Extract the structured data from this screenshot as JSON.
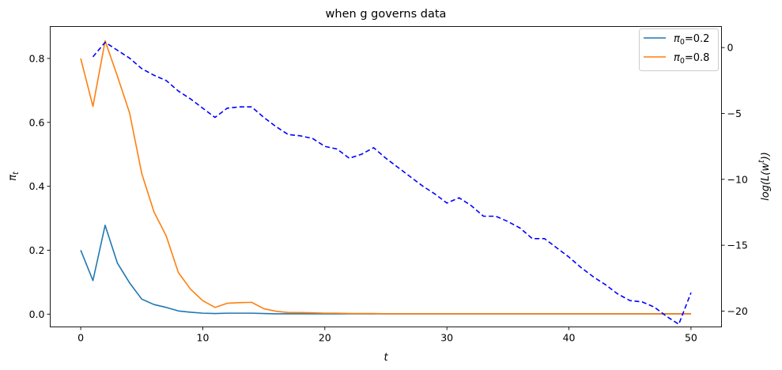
{
  "chart_data": {
    "type": "line",
    "title": "when g governs data",
    "xlabel": "t",
    "ylabel_left": "π_t",
    "ylabel_right": "log(L(w^t))",
    "xlim": [
      -2.5,
      52.5
    ],
    "ylim_left": [
      -0.04,
      0.9
    ],
    "ylim_right": [
      -21.2,
      1.6
    ],
    "x_ticks": [
      0,
      10,
      20,
      30,
      40,
      50
    ],
    "y_left_ticks": [
      0.0,
      0.2,
      0.4,
      0.6,
      0.8
    ],
    "y_right_ticks": [
      0,
      -5,
      -10,
      -15,
      -20
    ],
    "x_tick_labels": [
      "0",
      "10",
      "20",
      "30",
      "40",
      "50"
    ],
    "y_left_tick_labels": [
      "0.0",
      "0.2",
      "0.4",
      "0.6",
      "0.8"
    ],
    "y_right_tick_labels": [
      "0",
      "−5",
      "−10",
      "−15",
      "−20"
    ],
    "grid": false,
    "legend_position": "top-right",
    "series": [
      {
        "name": "π_0=0.2",
        "color": "#1f77b4",
        "axis": "left",
        "style": "solid",
        "x": [
          0,
          1,
          2,
          3,
          4,
          5,
          6,
          7,
          8,
          9,
          10,
          11,
          12,
          13,
          14,
          15,
          16,
          17,
          18,
          19,
          20,
          21,
          22,
          23,
          24,
          25,
          26,
          27,
          28,
          29,
          30,
          31,
          32,
          33,
          34,
          35,
          36,
          37,
          38,
          39,
          40,
          41,
          42,
          43,
          44,
          45,
          46,
          47,
          48,
          49,
          50
        ],
        "values": [
          0.2,
          0.105,
          0.278,
          0.16,
          0.098,
          0.047,
          0.03,
          0.021,
          0.01,
          0.006,
          0.003,
          0.002,
          0.003,
          0.003,
          0.003,
          0.002,
          0.001,
          0.001,
          0.001,
          0.001,
          0.001,
          0.001,
          0.001,
          0.001,
          0.001,
          0.001,
          0.001,
          0.001,
          0.001,
          0.001,
          0.001,
          0.001,
          0.001,
          0.001,
          0.001,
          0.001,
          0.001,
          0.001,
          0.001,
          0.001,
          0.001,
          0.001,
          0.001,
          0.001,
          0.001,
          0.001,
          0.001,
          0.001,
          0.001,
          0.001,
          0.001
        ]
      },
      {
        "name": "π_0=0.8",
        "color": "#ff7f0e",
        "axis": "left",
        "style": "solid",
        "x": [
          0,
          1,
          2,
          3,
          4,
          5,
          6,
          7,
          8,
          9,
          10,
          11,
          12,
          13,
          14,
          15,
          16,
          17,
          18,
          19,
          20,
          21,
          22,
          23,
          24,
          25,
          26,
          27,
          28,
          29,
          30,
          31,
          32,
          33,
          34,
          35,
          36,
          37,
          38,
          39,
          40,
          41,
          42,
          43,
          44,
          45,
          46,
          47,
          48,
          49,
          50
        ],
        "values": [
          0.8,
          0.65,
          0.855,
          0.745,
          0.63,
          0.44,
          0.32,
          0.245,
          0.13,
          0.078,
          0.042,
          0.021,
          0.034,
          0.036,
          0.037,
          0.017,
          0.009,
          0.005,
          0.005,
          0.004,
          0.003,
          0.003,
          0.002,
          0.002,
          0.002,
          0.001,
          0.001,
          0.001,
          0.001,
          0.001,
          0.001,
          0.001,
          0.001,
          0.001,
          0.001,
          0.001,
          0.001,
          0.001,
          0.001,
          0.001,
          0.001,
          0.001,
          0.001,
          0.001,
          0.001,
          0.001,
          0.001,
          0.001,
          0.001,
          0.001,
          0.001
        ]
      },
      {
        "name": "",
        "color": "#0000ff",
        "axis": "right",
        "style": "dashed",
        "x": [
          1,
          2,
          3,
          4,
          5,
          6,
          7,
          8,
          9,
          10,
          11,
          12,
          13,
          14,
          15,
          16,
          17,
          18,
          19,
          20,
          21,
          22,
          23,
          24,
          25,
          26,
          27,
          28,
          29,
          30,
          31,
          32,
          33,
          34,
          35,
          36,
          37,
          38,
          39,
          40,
          41,
          42,
          43,
          44,
          45,
          46,
          47,
          48,
          49,
          50
        ],
        "values": [
          -0.7,
          0.4,
          -0.2,
          -0.8,
          -1.6,
          -2.1,
          -2.5,
          -3.3,
          -3.9,
          -4.6,
          -5.3,
          -4.6,
          -4.5,
          -4.5,
          -5.3,
          -6.0,
          -6.6,
          -6.7,
          -6.9,
          -7.5,
          -7.7,
          -8.4,
          -8.1,
          -7.6,
          -8.4,
          -9.1,
          -9.8,
          -10.5,
          -11.1,
          -11.8,
          -11.4,
          -12.0,
          -12.8,
          -12.8,
          -13.2,
          -13.7,
          -14.5,
          -14.5,
          -15.2,
          -15.9,
          -16.7,
          -17.4,
          -18.0,
          -18.7,
          -19.2,
          -19.3,
          -19.7,
          -20.4,
          -21.0,
          -18.6
        ]
      }
    ]
  }
}
